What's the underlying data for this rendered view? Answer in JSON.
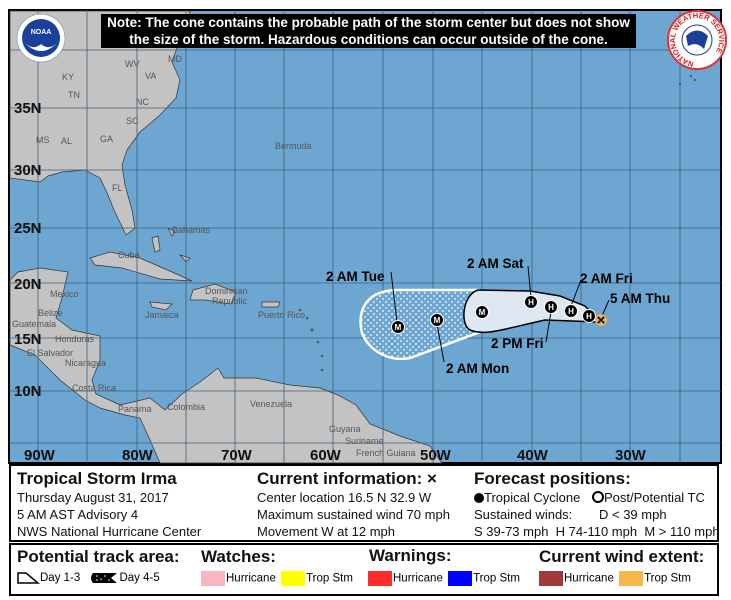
{
  "note": {
    "line1": "Note: The cone contains the probable path of the storm center but does not show",
    "line2": "the size of the storm. Hazardous conditions can occur outside of the cone."
  },
  "logos": {
    "left": "NOAA",
    "right": "NATIONAL WEATHER SERVICE"
  },
  "map": {
    "colors": {
      "ocean": "#6ca6d1",
      "land": "#c3c3c3",
      "cone_day13": "#dde8f2"
    },
    "lat_labels": [
      "35N",
      "30N",
      "25N",
      "20N",
      "15N",
      "10N"
    ],
    "lon_labels": [
      "90W",
      "80W",
      "70W",
      "60W",
      "50W",
      "40W",
      "30W"
    ],
    "places": {
      "IN": "IN",
      "KY": "KY",
      "WV": "WV",
      "VA": "VA",
      "TN": "TN",
      "NC": "NC",
      "SC": "SC",
      "MS": "MS",
      "AL": "AL",
      "GA": "GA",
      "FL": "FL",
      "MD": "MD",
      "Bermuda": "Bermuda",
      "Bahamas": "Bahamas",
      "Cuba": "Cuba",
      "Mexico": "Mexico",
      "Belize": "Belize",
      "Guatemala": "Guatemala",
      "Honduras": "Honduras",
      "ElSalvador": "El Salvador",
      "Nicaragua": "Nicaragua",
      "CostaRica": "Costa Rica",
      "Panama": "Panama",
      "Jamaica": "Jamaica",
      "Dominican": "Dominican",
      "Republic": "Republic",
      "PuertoRico": "Puerto Rico",
      "Colombia": "Colombia",
      "Venezuela": "Venezuela",
      "Guyana": "Guyana",
      "Suriname": "Suriname",
      "FrenchGuiana": "French Guiana"
    },
    "forecast_labels": {
      "tue": "2 AM Tue",
      "mon": "2 AM Mon",
      "sat": "2 AM Sat",
      "fri_pm": "2 PM Fri",
      "fri_am": "2 AM Fri",
      "thu": "5 AM Thu"
    },
    "points": [
      "M",
      "M",
      "M",
      "H",
      "H",
      "H",
      "H"
    ],
    "current_marker": "×"
  },
  "info": {
    "storm": "Tropical Storm Irma",
    "date": "Thursday August 31, 2017",
    "advisory": "5 AM AST Advisory 4",
    "center": "NWS National Hurricane Center",
    "current_title": "Current information: ×",
    "location": "Center location 16.5 N 32.9 W",
    "wind": "Maximum sustained wind 70 mph",
    "movement": "Movement W at 12 mph",
    "forecast_title": "Forecast positions:",
    "tc": "Tropical Cyclone",
    "post": "Post/Potential TC",
    "sustained": "Sustained winds:",
    "d": "D < 39 mph",
    "s": "S 39-73 mph",
    "hh": "H 74-110 mph",
    "m": "M > 110 mph"
  },
  "legend": {
    "track_title": "Potential track area:",
    "day13": "Day 1-3",
    "day45": "Day 4-5",
    "watches_title": "Watches:",
    "warnings_title": "Warnings:",
    "wind_title": "Current wind extent:",
    "hurricane": "Hurricane",
    "tropstm": "Trop Stm",
    "colors": {
      "watch_hurricane": "#f9b5c0",
      "watch_trop": "#ffff00",
      "warn_hurricane": "#ff2a2a",
      "warn_trop": "#0000ff",
      "wind_hurricane": "#a03a3a",
      "wind_trop": "#f6b84a"
    }
  }
}
